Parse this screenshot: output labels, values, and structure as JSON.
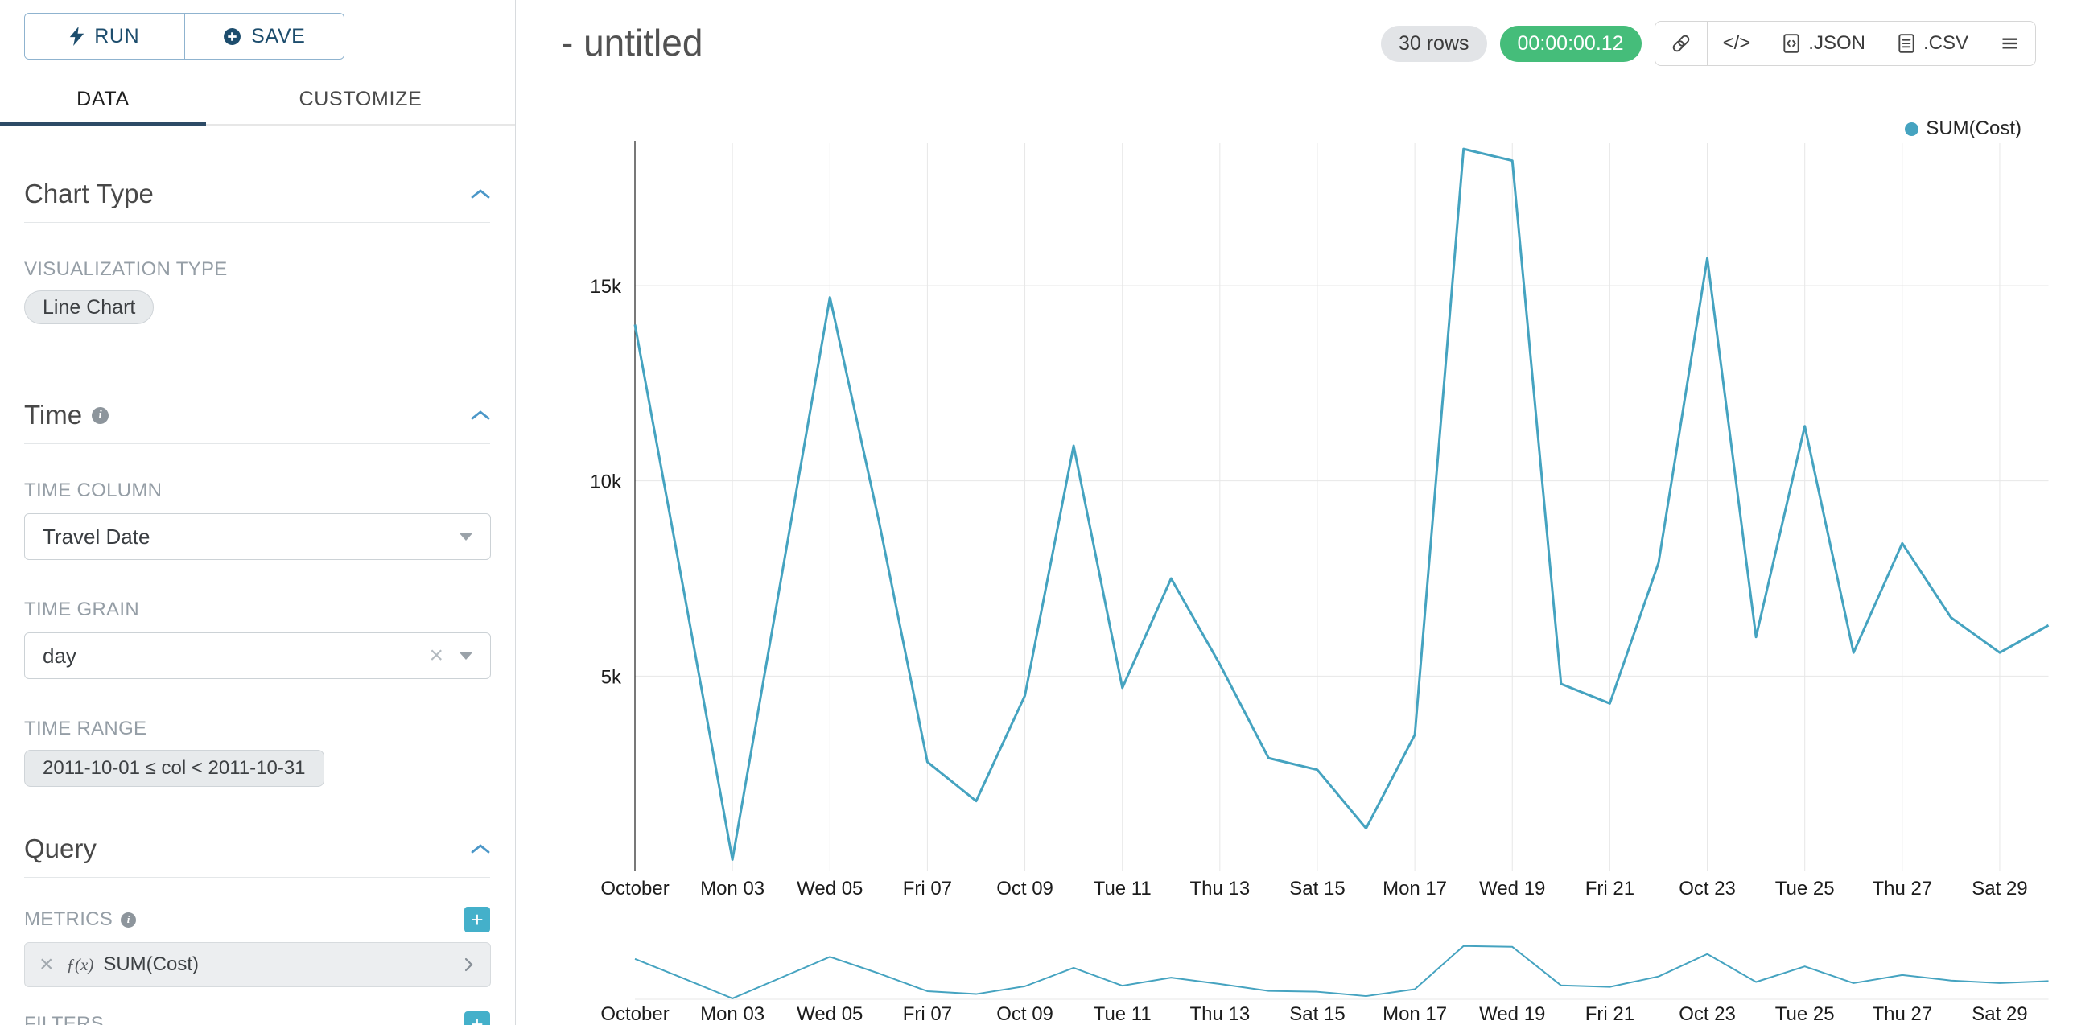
{
  "colors": {
    "series": "#45a3c0",
    "timer_badge_bg": "#45bd7a",
    "accent_blue": "#4b97c8",
    "add_button_bg": "#44b0ca",
    "tab_underline": "#2d4b66"
  },
  "icons": {
    "clear_glyph": "×",
    "info_glyph": "i",
    "add_glyph": "+"
  },
  "toolbar": {
    "run_label": "RUN",
    "save_label": "SAVE"
  },
  "tabs": [
    {
      "label": "DATA"
    },
    {
      "label": "CUSTOMIZE"
    }
  ],
  "sections": {
    "chart_type": {
      "title": "Chart Type",
      "visualization_type_label": "VISUALIZATION TYPE",
      "visualization_type_value": "Line Chart"
    },
    "time": {
      "title": "Time",
      "time_column_label": "TIME COLUMN",
      "time_column_value": "Travel Date",
      "time_grain_label": "TIME GRAIN",
      "time_grain_value": "day",
      "time_range_label": "TIME RANGE",
      "time_range_value": "2011-10-01 ≤ col < 2011-10-31"
    },
    "query": {
      "title": "Query",
      "metrics_label": "METRICS",
      "metric_fx": "ƒ(x)",
      "metric_name": "SUM(Cost)",
      "filters_label": "FILTERS"
    }
  },
  "header": {
    "title": "- untitled",
    "rows_badge": "30 rows",
    "timer_badge": "00:00:00.12",
    "code_button": "</>",
    "json_button": ".JSON",
    "csv_button": ".CSV"
  },
  "legend": {
    "label": "SUM(Cost)"
  },
  "chart_data": {
    "type": "line",
    "title": "",
    "xlabel": "",
    "ylabel": "",
    "x": [
      "2011-10-01",
      "2011-10-02",
      "2011-10-03",
      "2011-10-04",
      "2011-10-05",
      "2011-10-06",
      "2011-10-07",
      "2011-10-08",
      "2011-10-09",
      "2011-10-10",
      "2011-10-11",
      "2011-10-12",
      "2011-10-13",
      "2011-10-14",
      "2011-10-15",
      "2011-10-16",
      "2011-10-17",
      "2011-10-18",
      "2011-10-19",
      "2011-10-20",
      "2011-10-21",
      "2011-10-22",
      "2011-10-23",
      "2011-10-24",
      "2011-10-25",
      "2011-10-26",
      "2011-10-27",
      "2011-10-28",
      "2011-10-29",
      "2011-10-30"
    ],
    "series": [
      {
        "name": "SUM(Cost)",
        "color": "#45a3c0",
        "values": [
          14000,
          7200,
          300,
          7500,
          14700,
          9000,
          2800,
          1800,
          4500,
          10900,
          4700,
          7500,
          5300,
          2900,
          2600,
          1100,
          3500,
          18500,
          18200,
          4800,
          4300,
          7900,
          15700,
          6000,
          11400,
          5600,
          8400,
          6500,
          5600,
          6300
        ]
      }
    ],
    "x_axis": {
      "tick_indices": [
        0,
        2,
        4,
        6,
        8,
        10,
        12,
        14,
        16,
        18,
        20,
        22,
        24,
        26,
        28
      ],
      "tick_labels": [
        "October",
        "Mon 03",
        "Wed 05",
        "Fri 07",
        "Oct 09",
        "Tue 11",
        "Thu 13",
        "Sat 15",
        "Mon 17",
        "Wed 19",
        "Fri 21",
        "Oct 23",
        "Tue 25",
        "Thu 27",
        "Sat 29"
      ]
    },
    "y_axis": {
      "tick_values": [
        5000,
        10000,
        15000
      ],
      "tick_labels": [
        "5k",
        "10k",
        "15k"
      ]
    },
    "ylim": [
      0,
      18700
    ],
    "grid": true,
    "legend_position": "top-right",
    "has_focus_context_chart": true
  }
}
